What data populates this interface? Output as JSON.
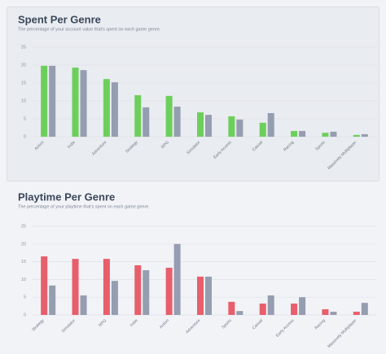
{
  "chart_data": [
    {
      "type": "bar",
      "title": "Spent Per Genre",
      "subtitle": "The percentage of your account value that's spent on each game genre.",
      "categories": [
        "Action",
        "Indie",
        "Adventure",
        "Strategy",
        "RPG",
        "Simulator",
        "Early Access",
        "Casual",
        "Racing",
        "Sports",
        "Massively Multiplayer"
      ],
      "series": [
        {
          "color": "#6dcf5b",
          "values": [
            19.8,
            19.3,
            16.1,
            11.6,
            11.4,
            6.8,
            5.7,
            3.9,
            1.6,
            1.1,
            0.5
          ]
        },
        {
          "color": "#959db0",
          "values": [
            19.8,
            18.6,
            15.2,
            8.2,
            8.4,
            6.1,
            4.8,
            6.6,
            1.6,
            1.4,
            0.7
          ]
        }
      ],
      "ylim": [
        0,
        25
      ],
      "yticks": [
        0,
        5,
        10,
        15,
        20,
        25
      ],
      "grid": true
    },
    {
      "type": "bar",
      "title": "Playtime Per Genre",
      "subtitle": "The percentage of your playtime that's spent on each game genre.",
      "categories": [
        "Strategy",
        "Simulator",
        "RPG",
        "Indie",
        "Action",
        "Adventure",
        "Sports",
        "Casual",
        "Early Access",
        "Racing",
        "Massively Multiplayer"
      ],
      "series": [
        {
          "color": "#e85e6b",
          "values": [
            16.5,
            15.8,
            15.8,
            14.0,
            13.3,
            10.8,
            3.7,
            3.2,
            3.2,
            1.6,
            0.9
          ]
        },
        {
          "color": "#959db0",
          "values": [
            8.3,
            5.5,
            9.6,
            12.6,
            20.0,
            10.8,
            1.1,
            5.5,
            5.0,
            0.9,
            3.4
          ]
        }
      ],
      "ylim": [
        0,
        25
      ],
      "yticks": [
        0,
        5,
        10,
        15,
        20,
        25
      ],
      "grid": true
    }
  ]
}
